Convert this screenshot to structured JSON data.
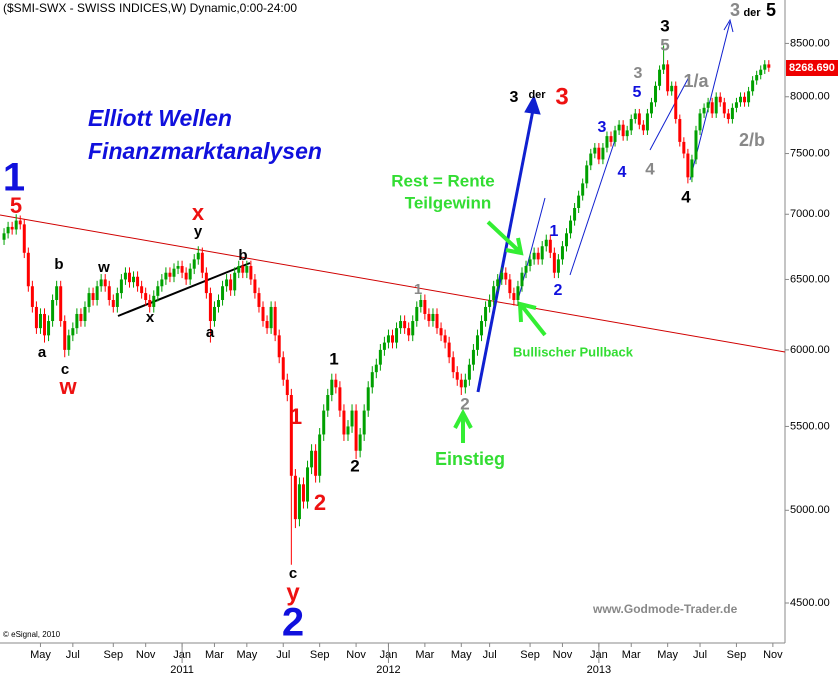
{
  "chart_data": {
    "type": "candlestick",
    "title": "($SMI-SWX - SWISS INDICES,W) Dynamic,0:00-24:00",
    "heading": [
      "Elliott Wellen",
      "Finanzmarktanalysen"
    ],
    "copyright": "© eSignal, 2010",
    "watermark": "www.Godmode-Trader.de",
    "last_label": "8268.690",
    "log_scale": true,
    "grid": false,
    "up_color": "#00a000",
    "down_color": "#ff0000",
    "ylim": [
      4300,
      8930
    ],
    "yticks": [
      {
        "value": 4500,
        "label": "4500.00"
      },
      {
        "value": 5000,
        "label": "5000.00"
      },
      {
        "value": 5500,
        "label": "5500.00"
      },
      {
        "value": 6000,
        "label": "6000.00"
      },
      {
        "value": 6500,
        "label": "6500.00"
      },
      {
        "value": 7000,
        "label": "7000.00"
      },
      {
        "value": 7500,
        "label": "7500.00"
      },
      {
        "value": 8000,
        "label": "8000.00"
      },
      {
        "value": 8500,
        "label": "8500.00"
      }
    ],
    "xlim": [
      -1,
      193
    ],
    "xticks": [
      {
        "value": 9,
        "label": "May"
      },
      {
        "value": 17,
        "label": "Jul"
      },
      {
        "value": 27,
        "label": "Sep"
      },
      {
        "value": 35,
        "label": "Nov"
      },
      {
        "value": 44,
        "label": "Jan"
      },
      {
        "value": 52,
        "label": "Mar"
      },
      {
        "value": 60,
        "label": "May"
      },
      {
        "value": 69,
        "label": "Jul"
      },
      {
        "value": 78,
        "label": "Sep"
      },
      {
        "value": 87,
        "label": "Nov"
      },
      {
        "value": 95,
        "label": "Jan"
      },
      {
        "value": 104,
        "label": "Mar"
      },
      {
        "value": 113,
        "label": "May"
      },
      {
        "value": 120,
        "label": "Jul"
      },
      {
        "value": 130,
        "label": "Sep"
      },
      {
        "value": 138,
        "label": "Nov"
      },
      {
        "value": 147,
        "label": "Jan"
      },
      {
        "value": 155,
        "label": "Mar"
      },
      {
        "value": 164,
        "label": "May"
      },
      {
        "value": 172,
        "label": "Jul"
      },
      {
        "value": 181,
        "label": "Sep"
      },
      {
        "value": 190,
        "label": "Nov"
      }
    ],
    "year_ticks": [
      {
        "value": 44,
        "label": "2011"
      },
      {
        "value": 95,
        "label": "2012"
      },
      {
        "value": 147,
        "label": "2013"
      }
    ],
    "open": [
      6800,
      6850,
      6900,
      6880,
      6950,
      6920,
      6700,
      6450,
      6300,
      6150,
      6250,
      6100,
      6200,
      6350,
      6450,
      6200,
      6000,
      6100,
      6150,
      6250,
      6200,
      6300,
      6400,
      6350,
      6450,
      6500,
      6450,
      6350,
      6300,
      6400,
      6500,
      6550,
      6480,
      6520,
      6450,
      6400,
      6350,
      6300,
      6380,
      6450,
      6500,
      6550,
      6520,
      6580,
      6600,
      6550,
      6500,
      6580,
      6650,
      6700,
      6550,
      6400,
      6200,
      6300,
      6350,
      6450,
      6500,
      6420,
      6550,
      6600,
      6550,
      6600,
      6500,
      6400,
      6300,
      6200,
      6150,
      6300,
      6100,
      5950,
      5800,
      5700,
      5200,
      4950,
      5150,
      5050,
      5250,
      5350,
      5200,
      5450,
      5600,
      5700,
      5800,
      5750,
      5600,
      5450,
      5500,
      5600,
      5350,
      5450,
      5600,
      5750,
      5850,
      5900,
      6000,
      6050,
      6100,
      6050,
      6150,
      6200,
      6150,
      6100,
      6200,
      6300,
      6350,
      6250,
      6200,
      6250,
      6150,
      6100,
      6050,
      5950,
      5850,
      5800,
      5750,
      5800,
      5900,
      6000,
      6100,
      6200,
      6300,
      6350,
      6450,
      6500,
      6550,
      6500,
      6400,
      6350,
      6450,
      6550,
      6600,
      6650,
      6700,
      6650,
      6750,
      6800,
      6700,
      6550,
      6650,
      6750,
      6850,
      6950,
      7050,
      7150,
      7250,
      7400,
      7500,
      7550,
      7450,
      7550,
      7650,
      7600,
      7700,
      7750,
      7650,
      7700,
      7800,
      7850,
      7750,
      7700,
      7850,
      7950,
      8100,
      8250,
      8300,
      8050,
      8100,
      7800,
      7600,
      7500,
      7300,
      7450,
      7700,
      7850,
      7900,
      7950,
      7850,
      8000,
      7950,
      7850,
      7800,
      7900,
      7950,
      8000,
      7950,
      8050,
      8150,
      8200,
      8250,
      8300
    ],
    "high": [
      6890,
      6940,
      6940,
      7000,
      6990,
      6960,
      6740,
      6490,
      6340,
      6290,
      6290,
      6240,
      6390,
      6490,
      6490,
      6240,
      6140,
      6190,
      6290,
      6290,
      6340,
      6440,
      6440,
      6490,
      6540,
      6540,
      6490,
      6390,
      6440,
      6540,
      6590,
      6590,
      6560,
      6560,
      6490,
      6440,
      6390,
      6420,
      6490,
      6540,
      6590,
      6590,
      6620,
      6640,
      6640,
      6590,
      6620,
      6690,
      6750,
      6740,
      6590,
      6440,
      6340,
      6390,
      6490,
      6540,
      6540,
      6590,
      6640,
      6640,
      6640,
      6640,
      6540,
      6440,
      6340,
      6240,
      6340,
      6340,
      6140,
      5990,
      5840,
      5740,
      5240,
      5190,
      5190,
      5290,
      5390,
      5390,
      5490,
      5640,
      5740,
      5840,
      5840,
      5790,
      5640,
      5540,
      5640,
      5640,
      5490,
      5640,
      5790,
      5890,
      5940,
      6040,
      6090,
      6140,
      6140,
      6190,
      6240,
      6240,
      6190,
      6240,
      6340,
      6390,
      6390,
      6290,
      6290,
      6290,
      6190,
      6140,
      6090,
      5990,
      5890,
      5840,
      5840,
      5940,
      6040,
      6140,
      6240,
      6340,
      6390,
      6490,
      6540,
      6590,
      6590,
      6540,
      6440,
      6490,
      6590,
      6640,
      6690,
      6740,
      6740,
      6790,
      6840,
      6840,
      6740,
      6690,
      6790,
      6890,
      6990,
      7090,
      7190,
      7290,
      7440,
      7540,
      7590,
      7590,
      7590,
      7690,
      7690,
      7740,
      7790,
      7790,
      7740,
      7840,
      7890,
      7890,
      7790,
      7890,
      7990,
      8140,
      8290,
      8480,
      8340,
      8140,
      8140,
      7840,
      7640,
      7540,
      7490,
      7740,
      7890,
      7940,
      7990,
      7990,
      8040,
      8040,
      7990,
      7890,
      7940,
      7990,
      8040,
      8040,
      8090,
      8190,
      8240,
      8290,
      8340,
      8340
    ],
    "low": [
      6760,
      6810,
      6840,
      6840,
      6880,
      6660,
      6410,
      6260,
      6110,
      6110,
      6050,
      6060,
      6160,
      6310,
      6160,
      5950,
      5960,
      6060,
      6110,
      6160,
      6160,
      6260,
      6310,
      6310,
      6410,
      6410,
      6310,
      6260,
      6260,
      6360,
      6460,
      6440,
      6440,
      6410,
      6360,
      6310,
      6260,
      6260,
      6340,
      6410,
      6460,
      6480,
      6480,
      6540,
      6510,
      6460,
      6460,
      6540,
      6610,
      6510,
      6360,
      6050,
      6160,
      6260,
      6310,
      6410,
      6380,
      6380,
      6510,
      6510,
      6510,
      6460,
      6360,
      6260,
      6160,
      6110,
      6110,
      6060,
      5910,
      5760,
      5660,
      4700,
      4900,
      4910,
      5010,
      5010,
      5210,
      5160,
      5160,
      5410,
      5560,
      5660,
      5710,
      5560,
      5410,
      5410,
      5460,
      5300,
      5310,
      5410,
      5560,
      5710,
      5810,
      5860,
      5960,
      6010,
      6010,
      6010,
      6110,
      6110,
      6060,
      6060,
      6160,
      6260,
      6210,
      6160,
      6160,
      6110,
      6060,
      6010,
      5910,
      5810,
      5760,
      5700,
      5710,
      5760,
      5860,
      5960,
      6060,
      6160,
      6260,
      6310,
      6410,
      6460,
      6460,
      6360,
      6310,
      6310,
      6410,
      6510,
      6560,
      6610,
      6610,
      6610,
      6710,
      6660,
      6510,
      6510,
      6610,
      6710,
      6810,
      6910,
      7010,
      7110,
      7210,
      7360,
      7460,
      7410,
      7410,
      7510,
      7560,
      7560,
      7660,
      7610,
      7610,
      7660,
      7760,
      7710,
      7660,
      7660,
      7810,
      7910,
      8060,
      8210,
      8010,
      8010,
      7760,
      7560,
      7460,
      7250,
      7260,
      7410,
      7660,
      7810,
      7860,
      7810,
      7810,
      7910,
      7810,
      7760,
      7760,
      7860,
      7910,
      7910,
      7910,
      8010,
      8110,
      8160,
      8210,
      8230
    ],
    "close": [
      6850,
      6900,
      6880,
      6950,
      6920,
      6700,
      6450,
      6300,
      6150,
      6250,
      6100,
      6200,
      6350,
      6450,
      6200,
      6000,
      6100,
      6150,
      6250,
      6200,
      6300,
      6400,
      6350,
      6450,
      6500,
      6450,
      6350,
      6300,
      6400,
      6500,
      6550,
      6480,
      6520,
      6450,
      6400,
      6350,
      6300,
      6380,
      6450,
      6500,
      6550,
      6520,
      6580,
      6600,
      6550,
      6500,
      6580,
      6650,
      6700,
      6550,
      6400,
      6200,
      6300,
      6350,
      6450,
      6500,
      6420,
      6550,
      6600,
      6550,
      6600,
      6500,
      6400,
      6300,
      6200,
      6150,
      6300,
      6100,
      5950,
      5800,
      5700,
      5200,
      4950,
      5150,
      5050,
      5250,
      5350,
      5200,
      5450,
      5600,
      5700,
      5800,
      5750,
      5600,
      5450,
      5500,
      5600,
      5350,
      5450,
      5600,
      5750,
      5850,
      5900,
      6000,
      6050,
      6100,
      6050,
      6150,
      6200,
      6150,
      6100,
      6200,
      6300,
      6350,
      6250,
      6200,
      6250,
      6150,
      6100,
      6050,
      5950,
      5850,
      5800,
      5750,
      5800,
      5900,
      6000,
      6100,
      6200,
      6300,
      6350,
      6450,
      6500,
      6550,
      6500,
      6400,
      6350,
      6450,
      6550,
      6600,
      6650,
      6700,
      6650,
      6750,
      6800,
      6700,
      6550,
      6650,
      6750,
      6850,
      6950,
      7050,
      7150,
      7250,
      7400,
      7500,
      7550,
      7450,
      7550,
      7650,
      7600,
      7700,
      7750,
      7650,
      7700,
      7800,
      7850,
      7750,
      7700,
      7850,
      7950,
      8100,
      8250,
      8300,
      8050,
      8100,
      7800,
      7600,
      7500,
      7300,
      7450,
      7700,
      7850,
      7900,
      7950,
      7850,
      8000,
      7950,
      7850,
      7800,
      7900,
      7950,
      8000,
      7950,
      8050,
      8150,
      8200,
      8250,
      8300,
      8268.69
    ],
    "annotations": [
      "1",
      "5",
      "a",
      "c",
      "w",
      "b",
      "w",
      "x",
      "x",
      "y",
      "b",
      "a",
      "1",
      "1",
      "2",
      "2",
      "c",
      "y",
      "2",
      "1",
      "2",
      "Einstieg",
      "Rest = Rente",
      "Teilgewinn",
      "Bullischer Pullback",
      "3",
      "der",
      "3",
      "1",
      "2",
      "3",
      "4",
      "5",
      "3",
      "4",
      "3",
      "5",
      "1/a",
      "4",
      "2/b",
      "3",
      "der",
      "5"
    ]
  }
}
